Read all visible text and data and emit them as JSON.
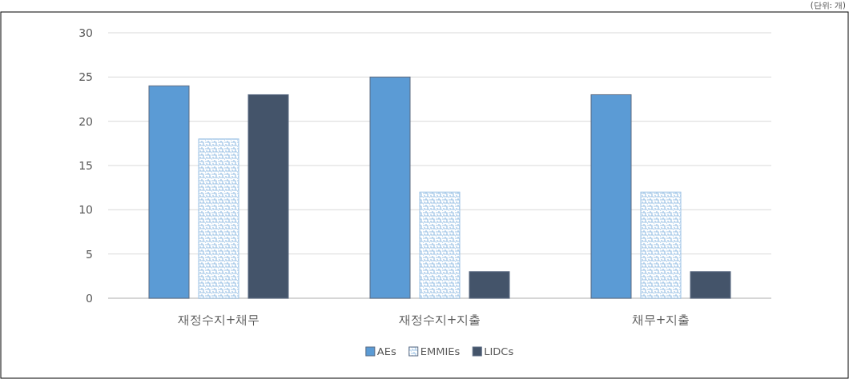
{
  "chart_data": {
    "type": "bar",
    "categories": [
      "재정수지+채무",
      "재정수지+지출",
      "채무+지출"
    ],
    "series": [
      {
        "name": "AEs",
        "color": "#5b9bd5",
        "values": [
          24,
          25,
          23
        ]
      },
      {
        "name": "EMMIEs",
        "color": "#9dc3e6",
        "values": [
          18,
          12,
          12
        ]
      },
      {
        "name": "LIDCs",
        "color": "#44546a",
        "values": [
          23,
          3,
          3
        ]
      }
    ],
    "ylim": [
      0,
      30
    ],
    "yticks": [
      0,
      5,
      10,
      15,
      20,
      25,
      30
    ],
    "grid": "y",
    "legend": "bottom",
    "annotations": [
      "(단위: 개)"
    ]
  }
}
